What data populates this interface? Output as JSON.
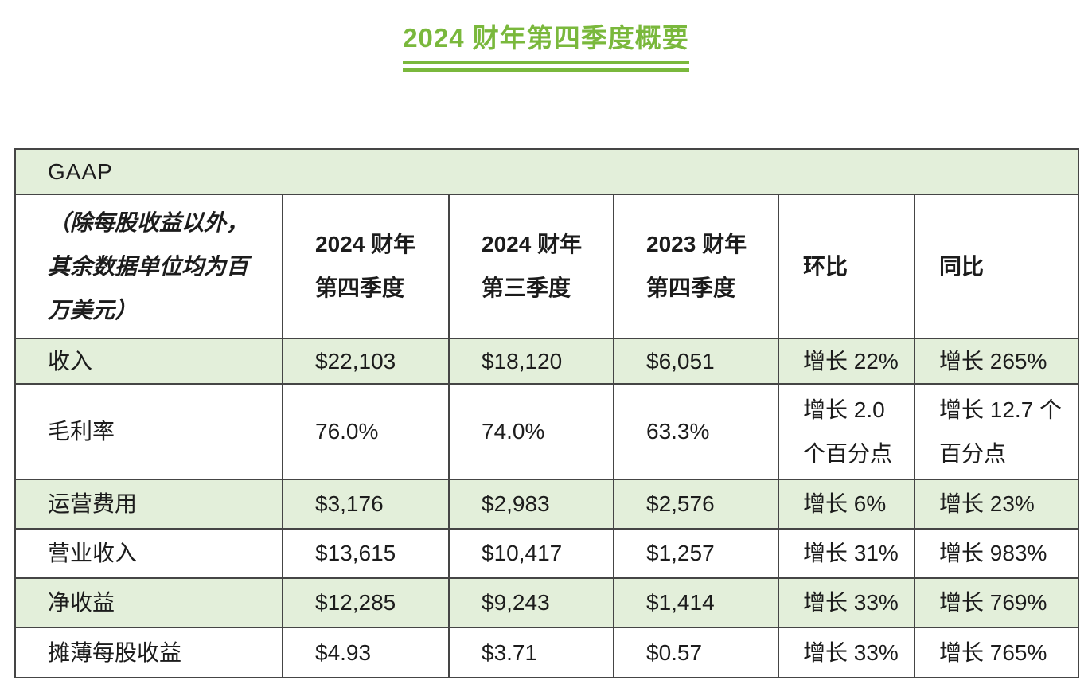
{
  "page_title": {
    "text": "2024 财年第四季度概要"
  },
  "table": {
    "caption": "GAAP",
    "columns": [
      {
        "label": "（除每股收益以外，\n其余数据单位均为百\n万美元）"
      },
      {
        "label": "2024 财年\n第四季度"
      },
      {
        "label": "2024 财年\n第三季度"
      },
      {
        "label": "2023 财年\n第四季度"
      },
      {
        "label": "环比"
      },
      {
        "label": "同比"
      }
    ],
    "rows": [
      {
        "label": "收入",
        "values": [
          "$22,103",
          "$18,120",
          "$6,051",
          "增长 22%",
          "增长 265%"
        ]
      },
      {
        "label": "毛利率",
        "values": [
          "76.0%",
          "74.0%",
          "63.3%",
          "增长 2.0\n个百分点",
          "增长 12.7 个\n百分点"
        ]
      },
      {
        "label": "运营费用",
        "values": [
          "$3,176",
          "$2,983",
          "$2,576",
          "增长 6%",
          "增长 23%"
        ]
      },
      {
        "label": "营业收入",
        "values": [
          "$13,615",
          "$10,417",
          "$1,257",
          "增长 31%",
          "增长 983%"
        ]
      },
      {
        "label": "净收益",
        "values": [
          "$12,285",
          "$9,243",
          "$1,414",
          "增长 33%",
          "增长 769%"
        ]
      },
      {
        "label": "摊薄每股收益",
        "values": [
          "$4.93",
          "$3.71",
          "$0.57",
          "增长 33%",
          "增长 765%"
        ]
      }
    ]
  },
  "colors": {
    "accent_green": "#7ab83c",
    "row_green": "#e3efda",
    "border": "#454545",
    "text": "#1c1c1c"
  }
}
